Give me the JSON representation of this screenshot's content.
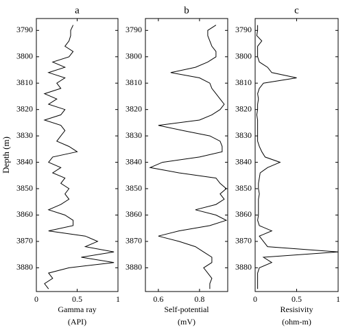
{
  "ylabel": "Depth (m)",
  "chart_data": [
    {
      "type": "line",
      "title": "a",
      "xlabel": [
        "Gamma ray",
        "(API)"
      ],
      "color": "#000000",
      "xlim": [
        0,
        1
      ],
      "xticks": [
        0,
        0.5,
        1
      ],
      "ylim": [
        3785.5,
        3889
      ],
      "y_inverted": true,
      "yticks": [
        3790,
        3800,
        3810,
        3820,
        3830,
        3840,
        3850,
        3860,
        3870,
        3880
      ],
      "y": [
        3788,
        3790,
        3792,
        3794,
        3796,
        3798,
        3800,
        3802,
        3804,
        3806,
        3808,
        3810,
        3812,
        3814,
        3816,
        3818,
        3820,
        3822,
        3824,
        3826,
        3828,
        3830,
        3832,
        3834,
        3836,
        3838,
        3840,
        3842,
        3844,
        3846,
        3848,
        3850,
        3852,
        3854,
        3856,
        3858,
        3860,
        3862,
        3864,
        3866,
        3868,
        3870,
        3872,
        3874,
        3876,
        3878,
        3880,
        3882,
        3884,
        3886,
        3888
      ],
      "values": [
        0.45,
        0.42,
        0.42,
        0.4,
        0.35,
        0.45,
        0.4,
        0.2,
        0.35,
        0.15,
        0.35,
        0.25,
        0.3,
        0.1,
        0.25,
        0.15,
        0.35,
        0.3,
        0.1,
        0.3,
        0.35,
        0.3,
        0.25,
        0.4,
        0.5,
        0.2,
        0.15,
        0.3,
        0.2,
        0.35,
        0.3,
        0.4,
        0.35,
        0.4,
        0.3,
        0.15,
        0.35,
        0.45,
        0.45,
        0.15,
        0.6,
        0.75,
        0.6,
        0.95,
        0.55,
        0.95,
        0.4,
        0.15,
        0.2,
        0.1,
        0.15
      ]
    },
    {
      "type": "line",
      "title": "b",
      "xlabel": [
        "Self-potential",
        "(mV)"
      ],
      "color": "#000000",
      "xlim": [
        0.537,
        0.937
      ],
      "xticks": [
        0.6,
        0.8
      ],
      "ylim": [
        3785.5,
        3889
      ],
      "y_inverted": true,
      "yticks": [
        3790,
        3800,
        3810,
        3820,
        3830,
        3840,
        3850,
        3860,
        3870,
        3880
      ],
      "y": [
        3788,
        3790,
        3792,
        3794,
        3796,
        3798,
        3800,
        3802,
        3804,
        3806,
        3808,
        3810,
        3812,
        3814,
        3816,
        3818,
        3820,
        3822,
        3824,
        3826,
        3828,
        3830,
        3832,
        3834,
        3836,
        3838,
        3840,
        3842,
        3844,
        3846,
        3848,
        3850,
        3852,
        3854,
        3856,
        3858,
        3860,
        3862,
        3864,
        3866,
        3868,
        3870,
        3872,
        3874,
        3876,
        3878,
        3880,
        3882,
        3884,
        3886,
        3888
      ],
      "values": [
        0.88,
        0.84,
        0.84,
        0.85,
        0.86,
        0.88,
        0.88,
        0.84,
        0.78,
        0.66,
        0.8,
        0.85,
        0.86,
        0.88,
        0.9,
        0.92,
        0.9,
        0.86,
        0.8,
        0.6,
        0.72,
        0.85,
        0.9,
        0.91,
        0.91,
        0.8,
        0.62,
        0.56,
        0.7,
        0.88,
        0.9,
        0.93,
        0.9,
        0.92,
        0.88,
        0.78,
        0.88,
        0.93,
        0.85,
        0.7,
        0.6,
        0.7,
        0.78,
        0.82,
        0.86,
        0.86,
        0.82,
        0.84,
        0.86,
        0.85,
        0.85
      ]
    },
    {
      "type": "line",
      "title": "c",
      "xlabel": [
        "Resisivity",
        "(ohm-m)"
      ],
      "color": "#000000",
      "xlim": [
        0,
        1
      ],
      "xticks": [
        0,
        0.5,
        1
      ],
      "ylim": [
        3785.5,
        3889
      ],
      "y_inverted": true,
      "yticks": [
        3790,
        3800,
        3810,
        3820,
        3830,
        3840,
        3850,
        3860,
        3870,
        3880
      ],
      "y": [
        3788,
        3790,
        3792,
        3794,
        3796,
        3798,
        3800,
        3802,
        3804,
        3806,
        3808,
        3810,
        3812,
        3814,
        3816,
        3818,
        3820,
        3822,
        3824,
        3826,
        3828,
        3830,
        3832,
        3834,
        3836,
        3838,
        3840,
        3842,
        3844,
        3846,
        3848,
        3850,
        3852,
        3854,
        3856,
        3858,
        3860,
        3862,
        3864,
        3866,
        3868,
        3870,
        3872,
        3874,
        3876,
        3878,
        3880,
        3882,
        3884,
        3886,
        3888
      ],
      "values": [
        0.03,
        0.03,
        0.02,
        0.08,
        0.03,
        0.03,
        0.03,
        0.05,
        0.15,
        0.2,
        0.5,
        0.1,
        0.05,
        0.03,
        0.04,
        0.03,
        0.03,
        0.02,
        0.03,
        0.03,
        0.03,
        0.03,
        0.03,
        0.05,
        0.08,
        0.12,
        0.3,
        0.15,
        0.06,
        0.05,
        0.04,
        0.04,
        0.05,
        0.04,
        0.04,
        0.04,
        0.04,
        0.03,
        0.05,
        0.2,
        0.05,
        0.1,
        0.15,
        1.0,
        0.1,
        0.2,
        0.05,
        0.03,
        0.03,
        0.03,
        0.03
      ]
    }
  ]
}
